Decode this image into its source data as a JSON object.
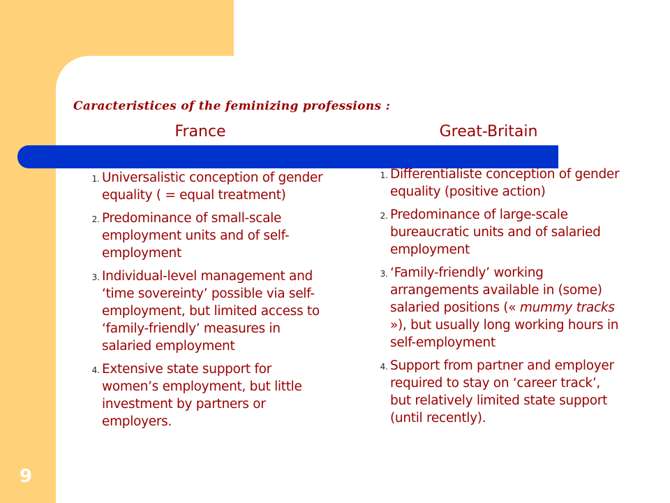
{
  "slide": {
    "heading": "Caracteristices of the feminizing professions :",
    "columns": [
      {
        "title": "France",
        "items": [
          "Universalistic conception of gender equality ( = equal treatment)",
          "Predominance of small-scale employment units and of self-employment",
          "Individual-level management and ‘time sovereinty’ possible via self-employment, but limited access to ‘family-friendly’ measures in salaried employment",
          "Extensive state support for women’s employment, but little investment by partners or employers."
        ]
      },
      {
        "title": "Great-Britain",
        "items": [
          "Differentialiste conception of gender equality (positive action)",
          "Predominance of large-scale bureaucratic units and of salaried employment",
          {
            "before": "‘Family-friendly’ working arrangements available in (some) salaried positions («",
            "italic": "mummy tracks",
            "after": "»), but usually long working hours in self-employment"
          },
          "Support from partner and employer required to stay on ‘career track’, but relatively limited state support (until recently)."
        ]
      }
    ],
    "page_number": "9"
  }
}
